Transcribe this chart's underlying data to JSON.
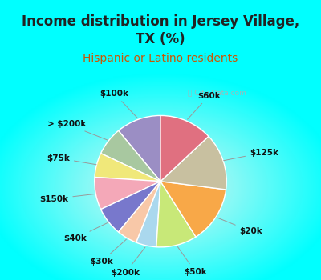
{
  "title": "Income distribution in Jersey Village,\nTX (%)",
  "subtitle": "Hispanic or Latino residents",
  "watermark": "Ⓢ City-Data.com",
  "background_color": "#00ffff",
  "chart_bg_outer": "#00ffff",
  "chart_bg_inner": "#e8f5ef",
  "title_color": "#222222",
  "subtitle_color": "#cc5500",
  "labels": [
    "$100k",
    "> $200k",
    "$75k",
    "$150k",
    "$40k",
    "$30k",
    "$200k",
    "$50k",
    "$20k",
    "$125k",
    "$60k"
  ],
  "values": [
    11,
    7,
    6,
    8,
    7,
    5,
    5,
    10,
    14,
    14,
    13
  ],
  "colors": [
    "#9b8ec4",
    "#a8c8a0",
    "#f0e87a",
    "#f4a8b8",
    "#7878cc",
    "#f8c8a8",
    "#aad8ee",
    "#c8e878",
    "#f8a848",
    "#c8c0a0",
    "#e07080"
  ],
  "startangle": 90,
  "title_fontsize": 12,
  "subtitle_fontsize": 10,
  "label_fontsize": 7.5
}
